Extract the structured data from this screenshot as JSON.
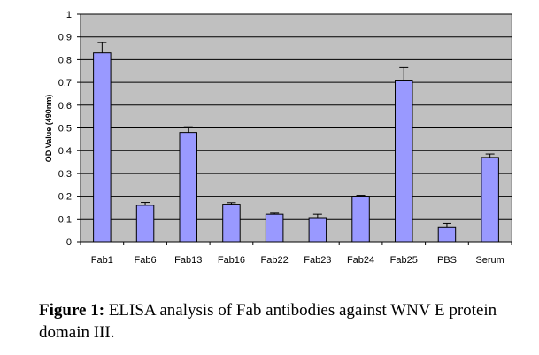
{
  "chart_data": {
    "type": "bar",
    "title": "",
    "xlabel": "",
    "ylabel": "OD Value (490nm)",
    "categories": [
      "Fab1",
      "Fab6",
      "Fab13",
      "Fab16",
      "Fab22",
      "Fab23",
      "Fab24",
      "Fab25",
      "PBS",
      "Serum"
    ],
    "values": [
      0.83,
      0.16,
      0.48,
      0.165,
      0.12,
      0.105,
      0.2,
      0.71,
      0.065,
      0.37
    ],
    "error": [
      0.045,
      0.013,
      0.025,
      0.007,
      0.005,
      0.015,
      0.004,
      0.055,
      0.015,
      0.015
    ],
    "ylim": [
      0,
      1
    ],
    "yticks": [
      "0",
      "0.1",
      "0.2",
      "0.3",
      "0.4",
      "0.5",
      "0.6",
      "0.7",
      "0.8",
      "0.9",
      "1"
    ],
    "grid": true,
    "legend": "none",
    "colors": {
      "bar": "#9999ff",
      "plot_bg": "#c0c0c0",
      "grid": "#000000",
      "border": "#000000"
    }
  },
  "caption": {
    "label": "Figure 1:",
    "text": " ELISA analysis of Fab antibodies against WNV E protein domain III."
  }
}
